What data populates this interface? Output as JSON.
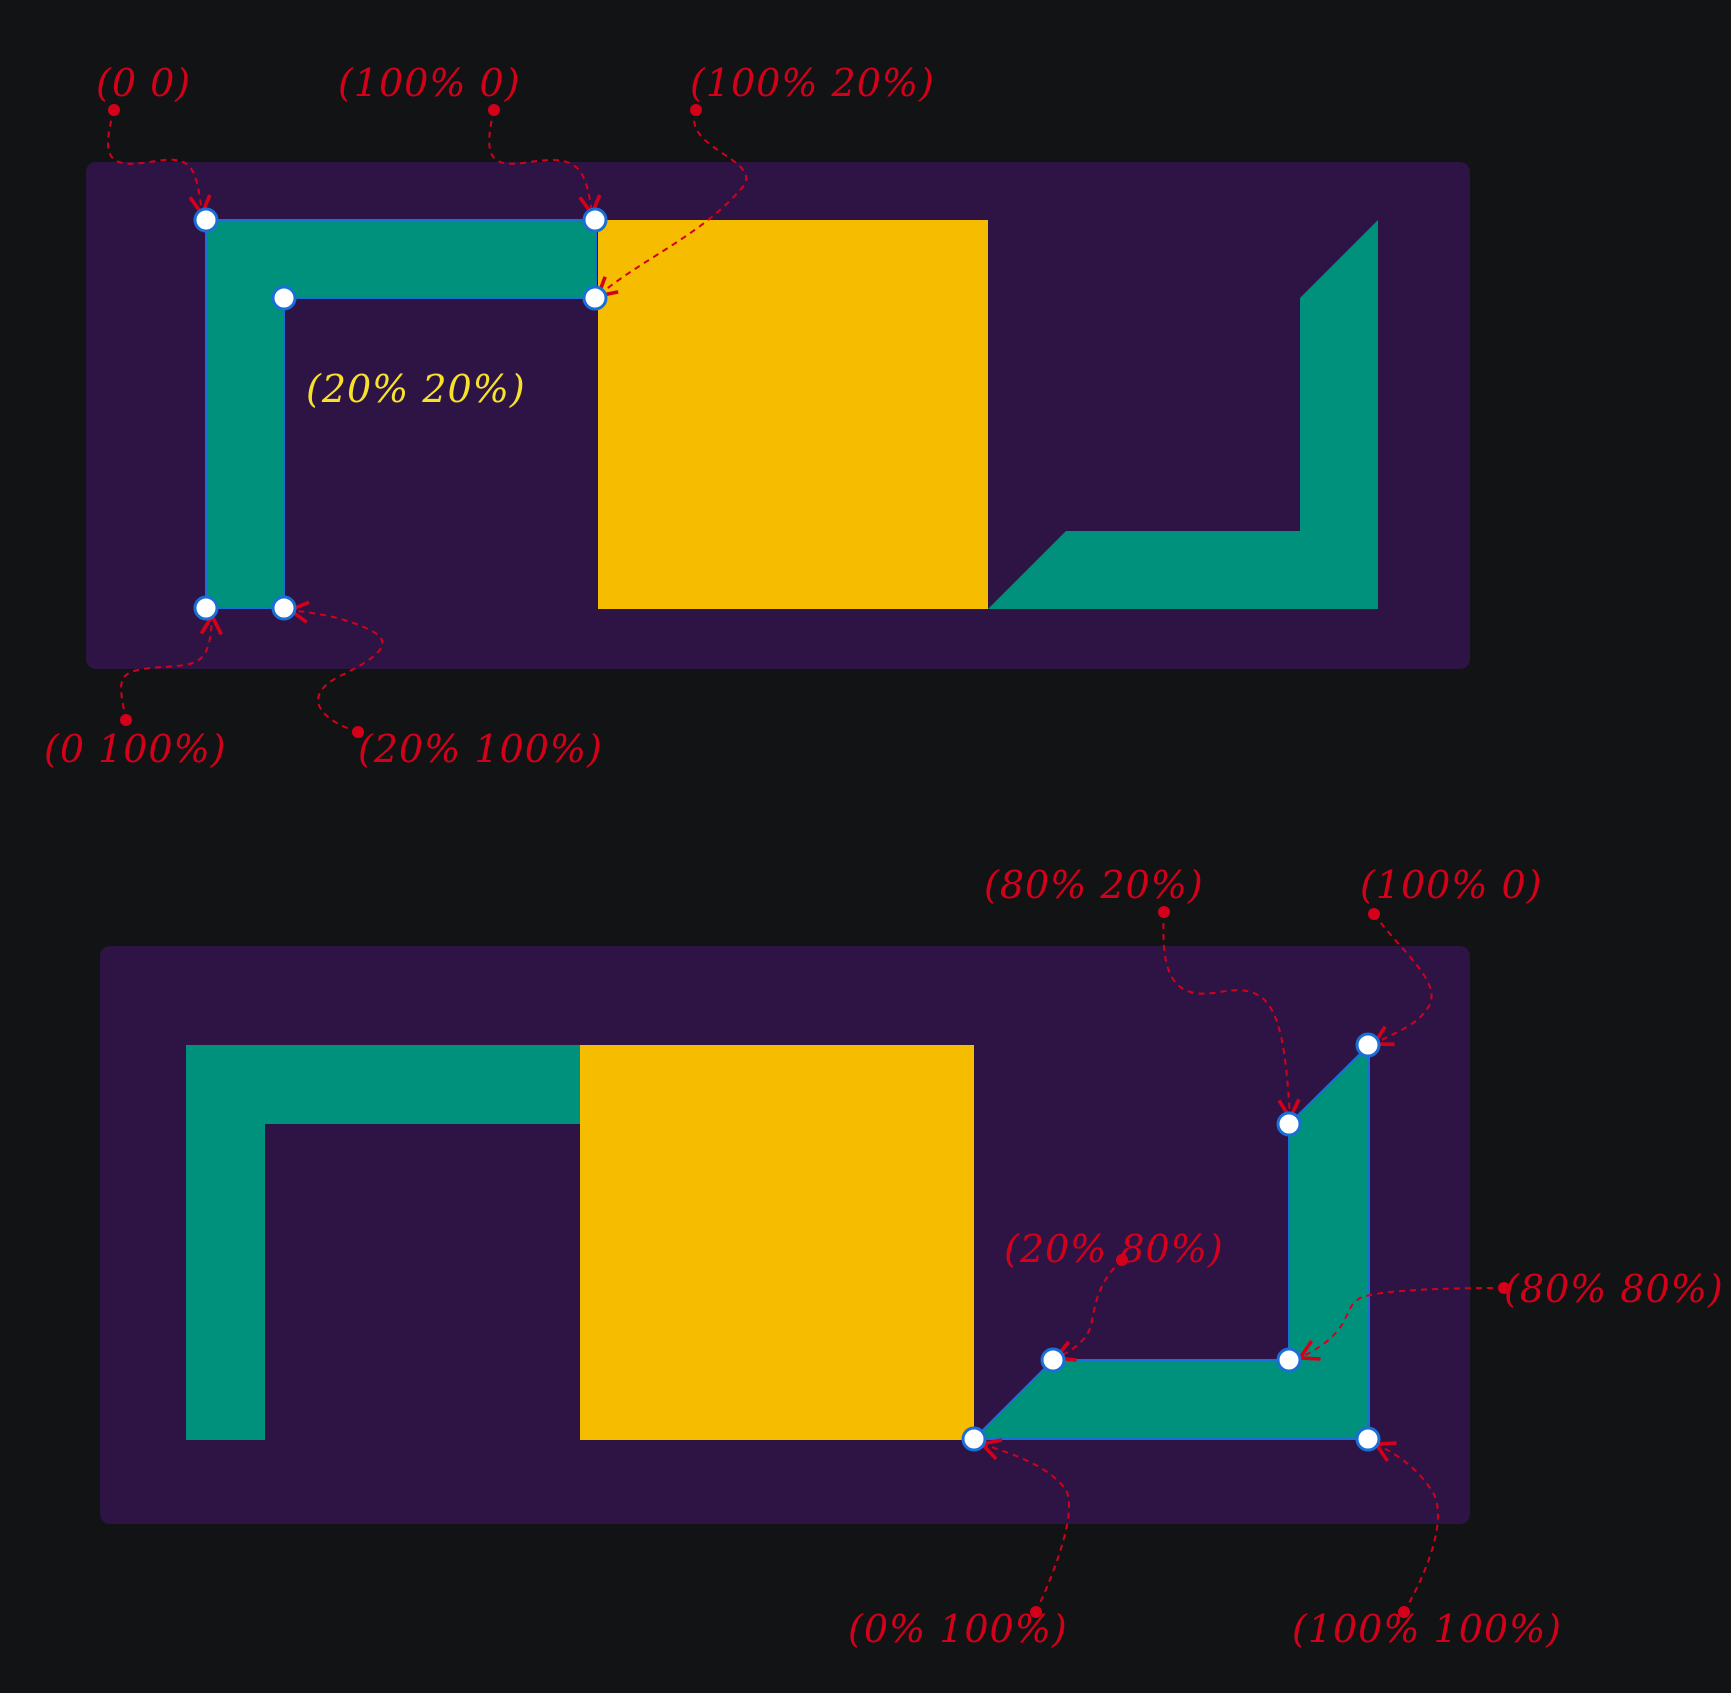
{
  "colors": {
    "background": "#121315",
    "panel": "#2d1445",
    "shape_teal": "#00917d",
    "shape_yellow": "#f6bc00",
    "annotation_red": "#d4001a",
    "label_yellow": "#f7e12a",
    "handle_fill": "#ffffff",
    "handle_stroke": "#1a6fd6"
  },
  "top_panel": {
    "labels": {
      "top_left": "(0 0)",
      "top_right": "(100% 0)",
      "inner_right": "(100% 20%)",
      "inner_corner": "(20% 20%)",
      "bottom_left": "(0 100%)",
      "bottom_inner": "(20% 100%)"
    }
  },
  "bottom_panel": {
    "labels": {
      "inner_top": "(80% 20%)",
      "top_right": "(100% 0)",
      "inner_left": "(20% 80%)",
      "inner_corner": "(80% 80%)",
      "bottom_left": "(0% 100%)",
      "bottom_right": "(100% 100%)"
    }
  }
}
